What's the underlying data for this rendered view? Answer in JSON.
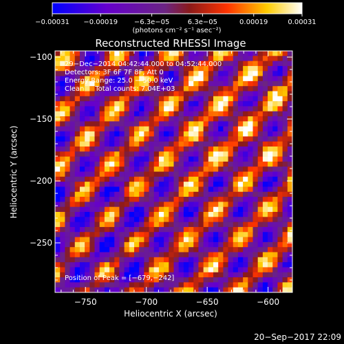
{
  "chart_data": {
    "type": "heatmap",
    "title": "Reconstructed RHESSI Image",
    "xlabel": "Heliocentric X (arcsec)",
    "ylabel": "Heliocentric Y (arcsec)",
    "xlim": [
      -775,
      -580
    ],
    "ylim": [
      -290,
      -95
    ],
    "x_ticks": [
      -750,
      -700,
      -650,
      -600
    ],
    "y_ticks": [
      -100,
      -150,
      -200,
      -250
    ],
    "x_tick_labels": [
      "−750",
      "−700",
      "−650",
      "−600"
    ],
    "y_tick_labels": [
      "−100",
      "−150",
      "−200",
      "−250"
    ],
    "grid": false,
    "grid_size": [
      48,
      48
    ],
    "pattern": "diagonal stripes of positive flux (yellow/orange) alternating with negative (purple/blue) along lines of slope -1",
    "peak_position": [
      -679,
      -242
    ],
    "colorbar": {
      "range": [
        -0.00031,
        0.00031
      ],
      "ticks": [
        -0.00031,
        -0.00019,
        -6.3e-05,
        6.3e-05,
        0.00019,
        0.00031
      ],
      "tick_labels": [
        "−0.00031",
        "−0.00019",
        "−6.3e−05",
        "6.3e−05",
        "0.00019",
        "0.00031"
      ],
      "label": "(photons cm⁻² s⁻¹ asec⁻²)",
      "colors": [
        "#0000ff",
        "#6600cc",
        "#6b2484",
        "#8b1a1a",
        "#ff3300",
        "#ffcc00",
        "#ffffff"
      ]
    },
    "annotations": [
      "29−Dec−2014 04:42:44.000 to 04:52:44.000",
      "Detectors: 3F 6F 7F 8F, Att 0",
      "Energy Range: 25.0 − 50.0 keV",
      "Clean     Total counts: 7.04E+03"
    ],
    "peak_label": "Position of Peak = [−679,−242]"
  },
  "footer": {
    "date": "20−Sep−2017 22:09"
  }
}
